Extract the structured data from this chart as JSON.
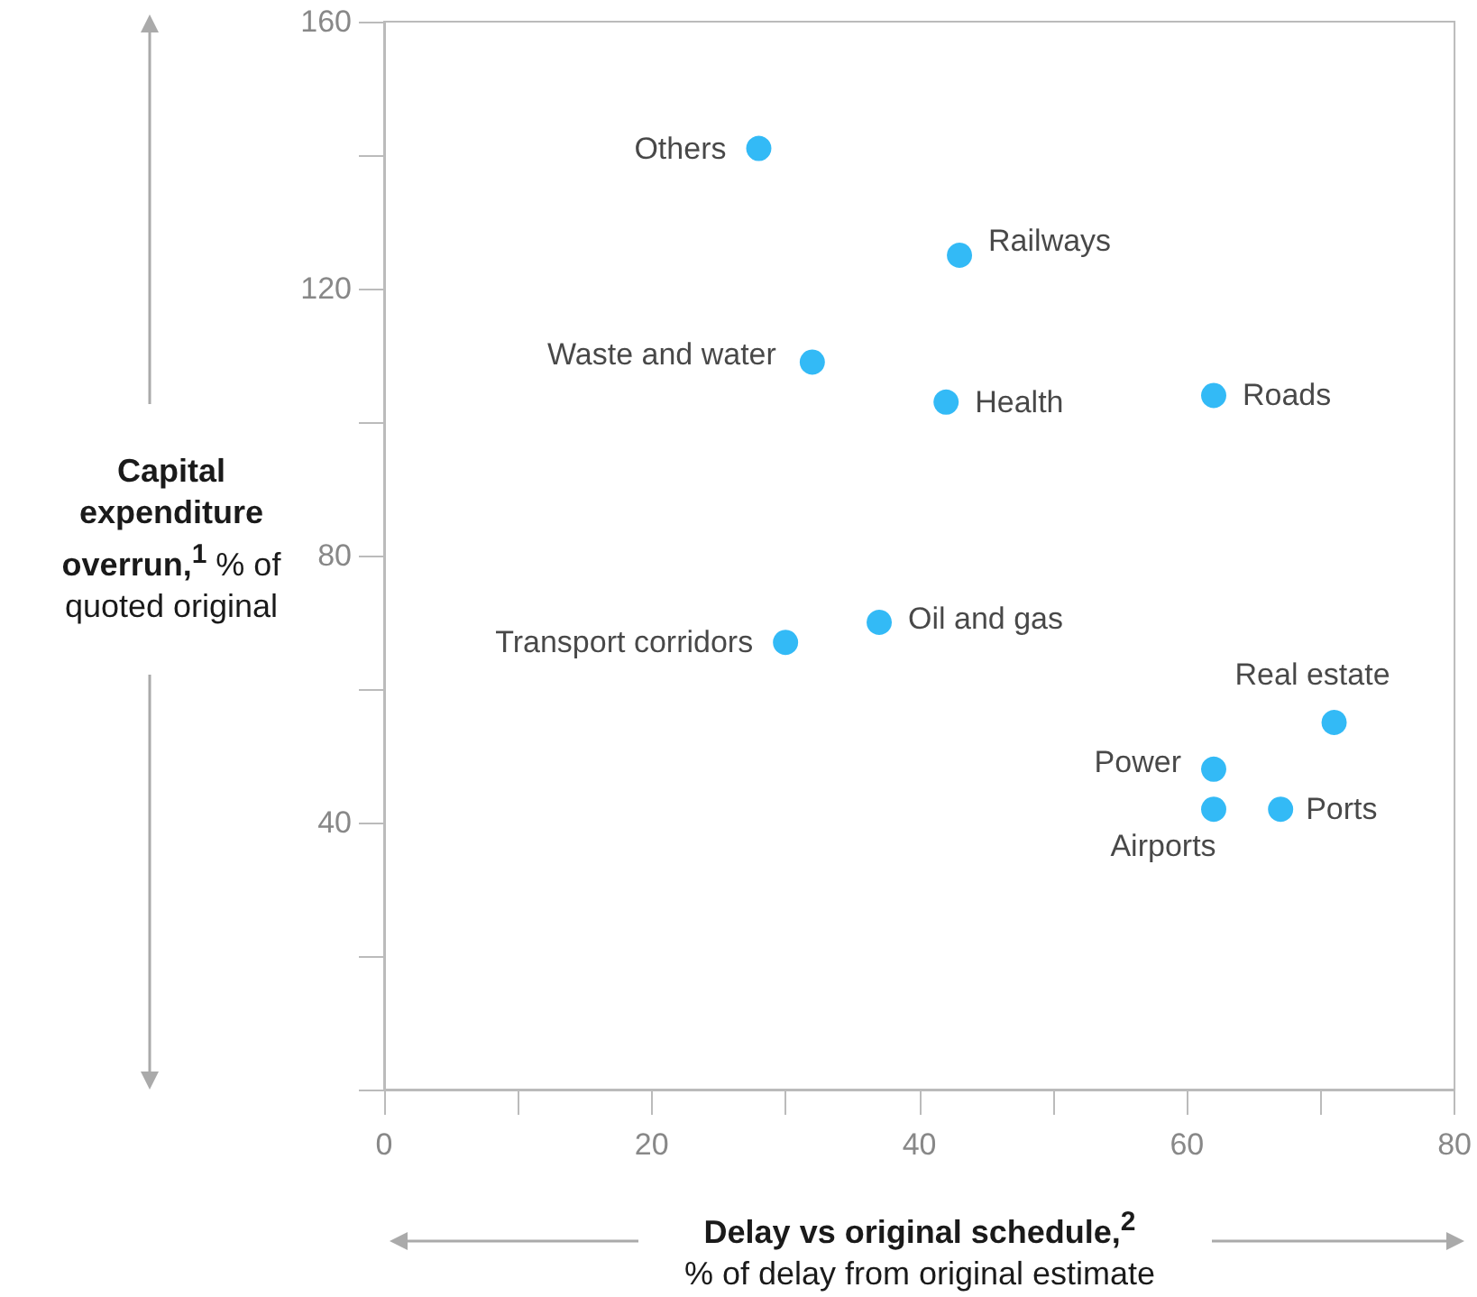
{
  "chart_data": {
    "type": "scatter",
    "xlabel": "Delay vs original schedule,$^{2}$ % of delay from original estimate",
    "ylabel": "Capital expenditure overrun,$^{1}$ % of quoted original",
    "series": [
      {
        "color": "#00a9f4",
        "x": [
          28,
          43,
          32,
          42,
          62,
          37,
          30,
          71,
          62,
          62,
          67
        ],
        "values": [
          141,
          125,
          109,
          103,
          104,
          70,
          67,
          55,
          48,
          42,
          42
        ],
        "value_labels": [
          "Others",
          "Railways",
          "Waste and water",
          "Health",
          "Roads",
          "Oil and gas",
          "Transport corridors",
          "Real estate",
          "Power",
          "Airports",
          "Ports"
        ]
      }
    ],
    "xlim": [
      0,
      80
    ],
    "ylim": [
      0,
      160
    ],
    "xticks": [
      0,
      {
        "value": 10,
        "label": null
      },
      20,
      {
        "value": 30,
        "label": null
      },
      40,
      {
        "value": 50,
        "label": null
      },
      60,
      {
        "value": 70,
        "label": null
      },
      80
    ],
    "yticks": [
      {
        "value": 0,
        "label": null
      },
      {
        "value": 20,
        "label": null
      },
      40,
      {
        "value": 60,
        "label": null
      },
      80,
      {
        "value": 100,
        "label": null
      },
      120,
      {
        "value": 140,
        "label": null
      },
      160
    ],
    "marker": "circle",
    "grid": false
  }
}
